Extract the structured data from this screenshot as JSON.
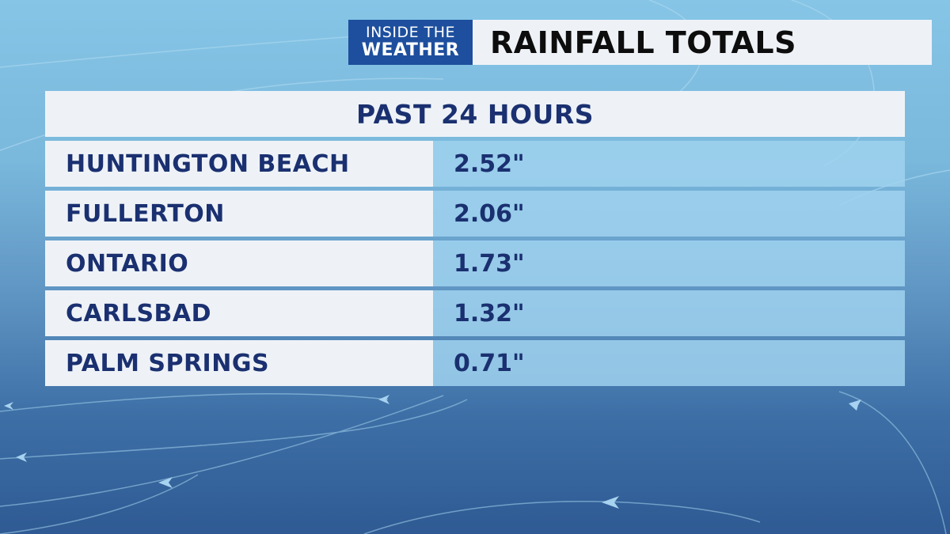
{
  "header": {
    "logo_line1": "INSIDE THE",
    "logo_line2": "WEATHER",
    "title": "RAINFALL TOTALS"
  },
  "table": {
    "subtitle": "PAST 24 HOURS",
    "rows": [
      {
        "location": "HUNTINGTON BEACH",
        "value": "2.52\""
      },
      {
        "location": "FULLERTON",
        "value": "2.06\""
      },
      {
        "location": "ONTARIO",
        "value": "1.73\""
      },
      {
        "location": "CARLSBAD",
        "value": "1.32\""
      },
      {
        "location": "PALM SPRINGS",
        "value": "0.71\""
      }
    ]
  },
  "colors": {
    "brand_blue": "#1e4f9e",
    "text_navy": "#1a3070",
    "panel_light": "#eef2f7",
    "value_cell": "#a0d2ee"
  }
}
